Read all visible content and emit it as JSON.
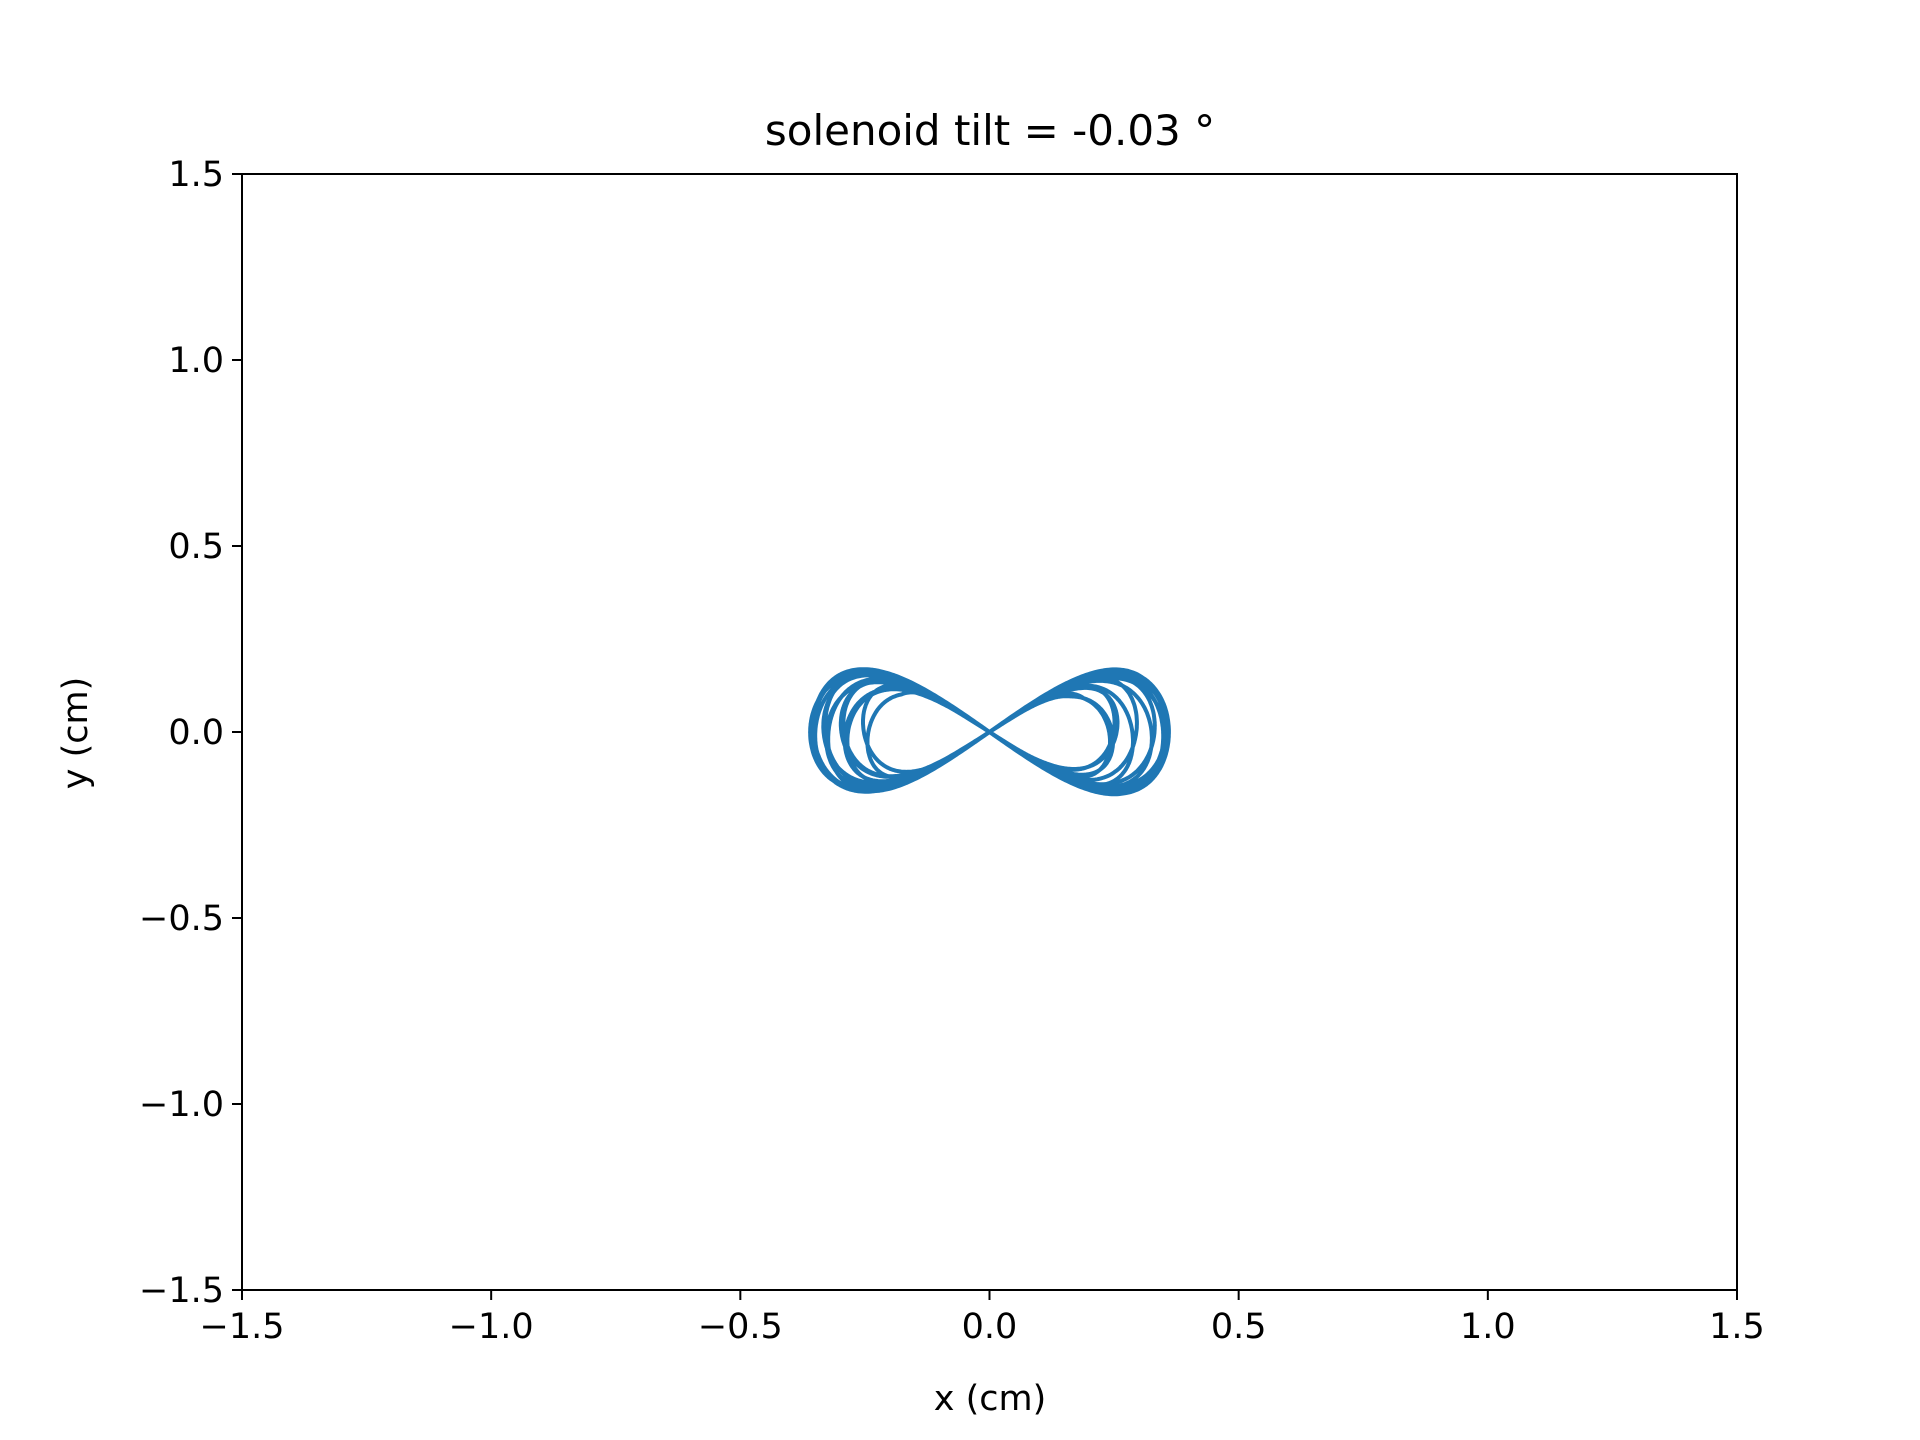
{
  "chart_data": {
    "type": "line",
    "title": "solenoid tilt = -0.03 °",
    "xlabel": "x (cm)",
    "ylabel": "y (cm)",
    "xlim": [
      -1.5,
      1.5
    ],
    "ylim": [
      -1.5,
      1.5
    ],
    "x_ticks": [
      "−1.5",
      "−1.0",
      "−0.5",
      "0.0",
      "0.5",
      "1.0",
      "1.5"
    ],
    "y_ticks": [
      "−1.5",
      "−1.0",
      "−0.5",
      "0.0",
      "0.5",
      "1.0",
      "1.5"
    ],
    "grid": false,
    "series": [
      {
        "color": "#1f77b4",
        "lobes": [
          {
            "center_x": -0.2,
            "center_y": 0.02,
            "amplitude_x": [
              0.07,
              0.36
            ],
            "amplitude_y": [
              0.04,
              0.17
            ]
          },
          {
            "center_x": 0.2,
            "center_y": -0.02,
            "amplitude_x": [
              0.07,
              0.36
            ],
            "amplitude_y": [
              0.04,
              0.17
            ]
          }
        ],
        "shape": "figure-eight",
        "crossing_point": [
          0.0,
          0.0
        ],
        "x_extent": [
          -0.36,
          0.36
        ],
        "y_extent": [
          -0.17,
          0.17
        ]
      }
    ]
  }
}
